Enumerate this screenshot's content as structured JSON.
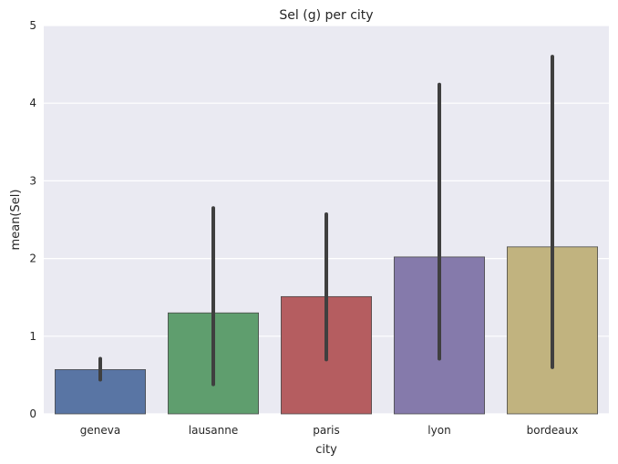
{
  "chart_data": {
    "type": "bar",
    "title": "Sel (g) per city",
    "xlabel": "city",
    "ylabel": "mean(Sel)",
    "categories": [
      "geneva",
      "lausanne",
      "paris",
      "lyon",
      "bordeaux"
    ],
    "values": [
      0.57,
      1.3,
      1.51,
      2.02,
      2.15
    ],
    "error_low": [
      0.44,
      0.38,
      0.7,
      0.71,
      0.6
    ],
    "error_high": [
      0.71,
      2.65,
      2.57,
      4.24,
      4.6
    ],
    "ylim": [
      0,
      5
    ],
    "yticks": [
      "0",
      "1",
      "2",
      "3",
      "4",
      "5"
    ],
    "grid": true,
    "legend": "none",
    "colors": [
      "#5975a4",
      "#5f9e6e",
      "#b55d60",
      "#857aab",
      "#c1b37f"
    ],
    "error_color": "#3f3f3f",
    "background": "#eaeaf2"
  }
}
